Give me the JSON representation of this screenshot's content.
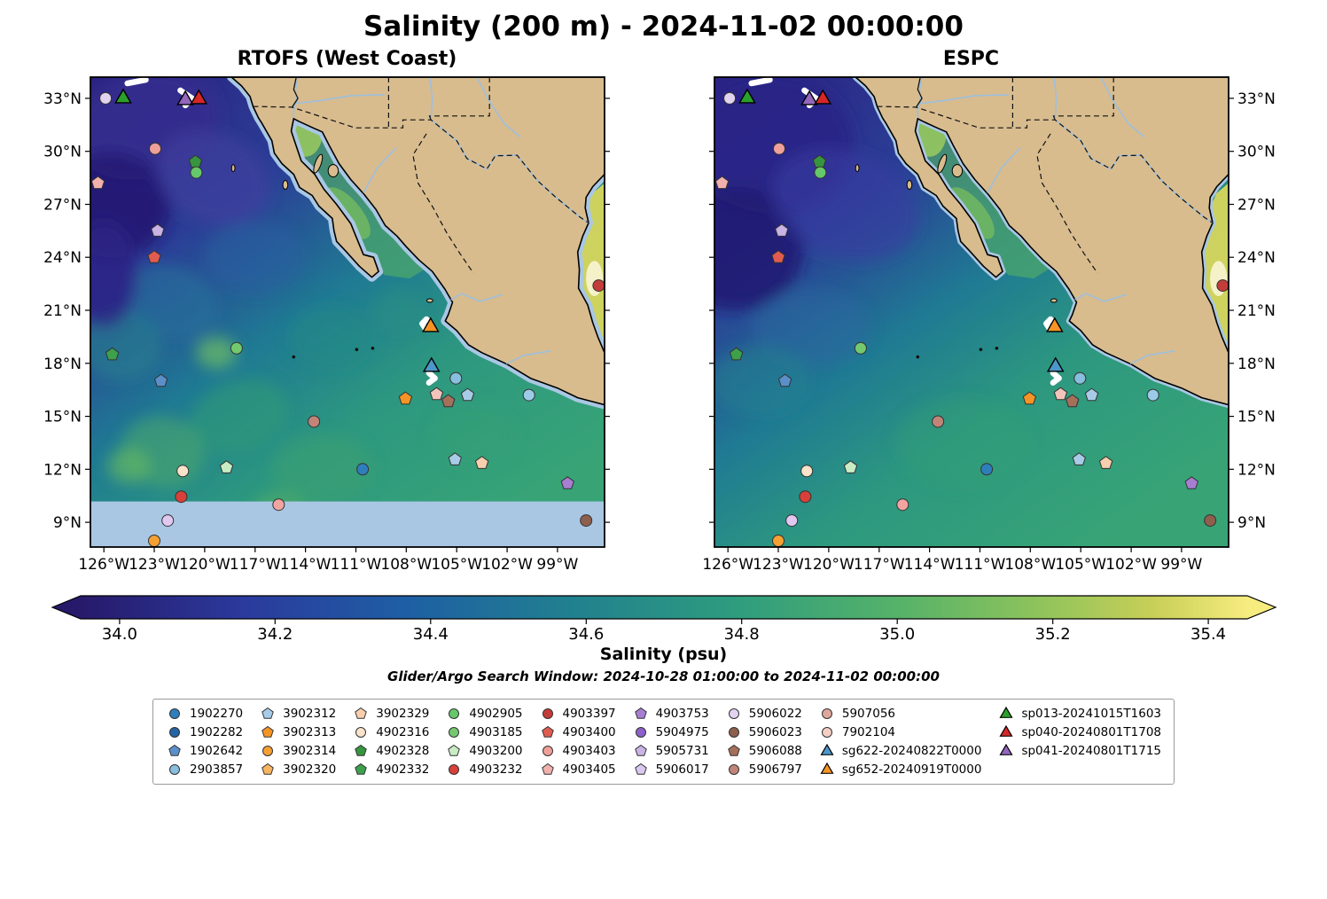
{
  "chart_data": {
    "type": "heatmap",
    "title": "Salinity (200 m) - 2024-11-02 00:00:00",
    "variable": "Salinity (psu)",
    "depth": "200 m",
    "datetime": "2024-11-02 00:00:00",
    "panels": [
      {
        "title": "RTOFS (West Coast)"
      },
      {
        "title": "ESPC"
      }
    ],
    "search_window": "Glider/Argo Search Window: 2024-10-28 01:00:00 to 2024-11-02 00:00:00",
    "axes": {
      "lon_tick_labels": [
        "126°W",
        "123°W",
        "120°W",
        "117°W",
        "114°W",
        "111°W",
        "108°W",
        "105°W",
        "102°W",
        "99°W"
      ],
      "lon_tick_values": [
        -126,
        -123,
        -120,
        -117,
        -114,
        -111,
        -108,
        -105,
        -102,
        -99
      ],
      "lat_tick_labels": [
        "33°N",
        "30°N",
        "27°N",
        "24°N",
        "21°N",
        "18°N",
        "15°N",
        "12°N",
        "9°N"
      ],
      "lat_tick_values": [
        33,
        30,
        27,
        24,
        21,
        18,
        15,
        12,
        9
      ],
      "lon_range": [
        -126.8,
        -96.2
      ],
      "lat_range": [
        7.6,
        34.2
      ]
    },
    "colorbar": {
      "label": "Salinity (psu)",
      "tick_labels": [
        "34.0",
        "34.2",
        "34.4",
        "34.6",
        "34.8",
        "35.0",
        "35.2",
        "35.4"
      ],
      "tick_values": [
        34.0,
        34.2,
        34.4,
        34.6,
        34.8,
        35.0,
        35.2,
        35.4
      ],
      "range": [
        33.95,
        35.45
      ],
      "gradient": [
        [
          0.0,
          "#271a6b"
        ],
        [
          0.14,
          "#2b3a9d"
        ],
        [
          0.28,
          "#1e5fa4"
        ],
        [
          0.42,
          "#21808f"
        ],
        [
          0.56,
          "#2e9c7e"
        ],
        [
          0.7,
          "#55b269"
        ],
        [
          0.82,
          "#8ec35c"
        ],
        [
          0.92,
          "#c8cf57"
        ],
        [
          1.0,
          "#f6ec7f"
        ]
      ]
    },
    "legend": {
      "columns": [
        [
          {
            "label": "1902270",
            "shape": "circle",
            "color": "#2e7ebc"
          },
          {
            "label": "1902282",
            "shape": "circle",
            "color": "#2464a4"
          },
          {
            "label": "1902642",
            "shape": "pentagon",
            "color": "#5b8fc9"
          },
          {
            "label": "2903857",
            "shape": "circle",
            "color": "#88bede"
          }
        ],
        [
          {
            "label": "3902312",
            "shape": "pentagon",
            "color": "#a8cbe8"
          },
          {
            "label": "3902313",
            "shape": "pentagon",
            "color": "#f59426"
          },
          {
            "label": "3902314",
            "shape": "circle",
            "color": "#f5a033"
          },
          {
            "label": "3902320",
            "shape": "pentagon",
            "color": "#f8b45f"
          }
        ],
        [
          {
            "label": "3902329",
            "shape": "pentagon",
            "color": "#f8cfae"
          },
          {
            "label": "4902316",
            "shape": "circle",
            "color": "#fbe3c9"
          },
          {
            "label": "4902328",
            "shape": "pentagon",
            "color": "#37953f"
          },
          {
            "label": "4902332",
            "shape": "pentagon",
            "color": "#3da04b"
          }
        ],
        [
          {
            "label": "4902905",
            "shape": "circle",
            "color": "#66c86a"
          },
          {
            "label": "4903185",
            "shape": "circle",
            "color": "#74c96e"
          },
          {
            "label": "4903200",
            "shape": "pentagon",
            "color": "#c9ecc4"
          },
          {
            "label": "4903232",
            "shape": "circle",
            "color": "#d8403a"
          }
        ],
        [
          {
            "label": "4903397",
            "shape": "circle",
            "color": "#c43c39"
          },
          {
            "label": "4903400",
            "shape": "pentagon",
            "color": "#e05c50"
          },
          {
            "label": "4903403",
            "shape": "circle",
            "color": "#f0a09a"
          },
          {
            "label": "4903405",
            "shape": "pentagon",
            "color": "#f2b1ac"
          }
        ],
        [
          {
            "label": "4903753",
            "shape": "pentagon",
            "color": "#a87ed2"
          },
          {
            "label": "5904975",
            "shape": "circle",
            "color": "#8d61c9"
          },
          {
            "label": "5905731",
            "shape": "pentagon",
            "color": "#c9b2e4"
          },
          {
            "label": "5906017",
            "shape": "pentagon",
            "color": "#d9c8ef"
          }
        ],
        [
          {
            "label": "5906022",
            "shape": "circle",
            "color": "#e2d4f0"
          },
          {
            "label": "5906023",
            "shape": "circle",
            "color": "#8d5f4c"
          },
          {
            "label": "5906088",
            "shape": "pentagon",
            "color": "#a5705a"
          },
          {
            "label": "5906797",
            "shape": "circle",
            "color": "#c08578"
          }
        ],
        [
          {
            "label": "5907056",
            "shape": "circle",
            "color": "#dda79c"
          },
          {
            "label": "7902104",
            "shape": "circle",
            "color": "#f4cfc4"
          },
          {
            "label": "sg622-20240822T0000",
            "shape": "triangle",
            "color": "#4d96c9"
          },
          {
            "label": "sg652-20240919T0000",
            "shape": "triangle",
            "color": "#f59426"
          }
        ],
        [
          {
            "label": "sp013-20241015T1603",
            "shape": "triangle",
            "color": "#2ca02c"
          },
          {
            "label": "sp040-20240801T1708",
            "shape": "triangle",
            "color": "#d62728"
          },
          {
            "label": "sp041-20240801T1715",
            "shape": "triangle",
            "color": "#9467bd"
          }
        ]
      ]
    },
    "markers": [
      {
        "lon": -125.9,
        "lat": 33.0,
        "shape": "circle",
        "color": "#e2d4f0"
      },
      {
        "lon": -122.95,
        "lat": 30.15,
        "shape": "circle",
        "color": "#f0a09a"
      },
      {
        "lon": -120.55,
        "lat": 29.4,
        "shape": "pentagon",
        "color": "#37953f"
      },
      {
        "lon": -120.5,
        "lat": 28.8,
        "shape": "circle",
        "color": "#66c86a"
      },
      {
        "lon": -126.35,
        "lat": 28.2,
        "shape": "pentagon",
        "color": "#f2b1ac"
      },
      {
        "lon": -122.8,
        "lat": 25.5,
        "shape": "pentagon",
        "color": "#c9b2e4"
      },
      {
        "lon": -123.0,
        "lat": 24.0,
        "shape": "pentagon",
        "color": "#e05c50"
      },
      {
        "lon": -125.5,
        "lat": 18.5,
        "shape": "pentagon",
        "color": "#3da04b"
      },
      {
        "lon": -118.1,
        "lat": 18.85,
        "shape": "circle",
        "color": "#74c96e"
      },
      {
        "lon": -122.6,
        "lat": 17.0,
        "shape": "pentagon",
        "color": "#5b8fc9"
      },
      {
        "lon": -105.05,
        "lat": 17.15,
        "shape": "circle",
        "color": "#88bede"
      },
      {
        "lon": -106.2,
        "lat": 16.25,
        "shape": "pentagon",
        "color": "#f2c4bb"
      },
      {
        "lon": -105.5,
        "lat": 15.85,
        "shape": "pentagon",
        "color": "#a5705a"
      },
      {
        "lon": -104.35,
        "lat": 16.2,
        "shape": "pentagon",
        "color": "#a8cbe8"
      },
      {
        "lon": -108.05,
        "lat": 16.0,
        "shape": "pentagon",
        "color": "#f59426"
      },
      {
        "lon": -100.7,
        "lat": 16.2,
        "shape": "circle",
        "color": "#9ccbe8"
      },
      {
        "lon": -113.5,
        "lat": 14.7,
        "shape": "circle",
        "color": "#c08578"
      },
      {
        "lon": -121.3,
        "lat": 11.9,
        "shape": "circle",
        "color": "#fbe3c9"
      },
      {
        "lon": -118.7,
        "lat": 12.1,
        "shape": "pentagon",
        "color": "#c9ecc4"
      },
      {
        "lon": -110.6,
        "lat": 12.0,
        "shape": "circle",
        "color": "#2e7ebc"
      },
      {
        "lon": -105.1,
        "lat": 12.55,
        "shape": "pentagon",
        "color": "#a8cbe8"
      },
      {
        "lon": -103.5,
        "lat": 12.35,
        "shape": "pentagon",
        "color": "#f8cfae"
      },
      {
        "lon": -98.4,
        "lat": 11.2,
        "shape": "pentagon",
        "color": "#a87ed2"
      },
      {
        "lon": -121.4,
        "lat": 10.45,
        "shape": "circle",
        "color": "#d8403a"
      },
      {
        "lon": -115.6,
        "lat": 10.0,
        "shape": "circle",
        "color": "#f2a5a0"
      },
      {
        "lon": -122.2,
        "lat": 9.1,
        "shape": "circle",
        "color": "#e0c8f0"
      },
      {
        "lon": -97.3,
        "lat": 9.1,
        "shape": "circle",
        "color": "#8d5f4c"
      },
      {
        "lon": -123.0,
        "lat": 7.95,
        "shape": "circle",
        "color": "#f5a033"
      },
      {
        "lon": -96.55,
        "lat": 22.4,
        "shape": "circle",
        "color": "#c43c39"
      }
    ],
    "glider_markers": [
      {
        "label": "sp013-20241015T1603",
        "lon": -124.85,
        "lat": 33.0,
        "color": "#2ca02c"
      },
      {
        "label": "sp041-20240801T1715",
        "lon": -121.15,
        "lat": 32.9,
        "color": "#9467bd"
      },
      {
        "label": "sp040-20240801T1708",
        "lon": -120.35,
        "lat": 32.95,
        "color": "#d62728"
      },
      {
        "label": "sg652-20240919T0000",
        "lon": -106.55,
        "lat": 20.05,
        "color": "#f59426"
      },
      {
        "label": "sg622-20240822T0000",
        "lon": -106.5,
        "lat": 17.8,
        "color": "#4d96c9"
      }
    ],
    "glider_tracks": [
      [
        [
          -124.6,
          33.85
        ],
        [
          -123.5,
          34.05
        ]
      ],
      [
        [
          -121.45,
          33.45
        ],
        [
          -120.75,
          33.0
        ],
        [
          -121.15,
          32.6
        ]
      ],
      [
        [
          -106.8,
          20.5
        ],
        [
          -106.5,
          20.2
        ],
        [
          -106.85,
          19.95
        ],
        [
          -107.05,
          20.25
        ],
        [
          -106.8,
          20.5
        ]
      ],
      [
        [
          -106.65,
          17.45
        ],
        [
          -106.3,
          17.15
        ],
        [
          -106.65,
          16.9
        ]
      ]
    ]
  }
}
